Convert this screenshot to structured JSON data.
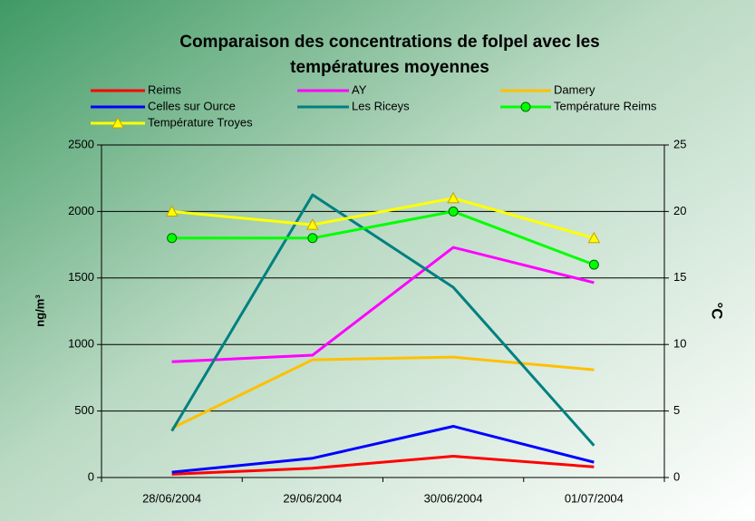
{
  "chart_data": {
    "type": "line",
    "title": [
      "Comparaison des concentrations de folpel avec les",
      "températures moyennes"
    ],
    "ylabel": "ng/m³",
    "y2label": "°C",
    "categories": [
      "28/06/2004",
      "29/06/2004",
      "30/06/2004",
      "01/07/2004"
    ],
    "series": [
      {
        "name": "Reims",
        "color": "#ff0000",
        "values": [
          25,
          70,
          160,
          80
        ]
      },
      {
        "name": "AY",
        "color": "#ff00ff",
        "values": [
          870,
          920,
          1730,
          1465
        ]
      },
      {
        "name": "Damery",
        "color": "#ffc000",
        "values": [
          370,
          885,
          905,
          810
        ]
      },
      {
        "name": "Celles sur Ource",
        "color": "#0000ff",
        "values": [
          40,
          145,
          385,
          115
        ]
      },
      {
        "name": "Les Riceys",
        "color": "#008080",
        "values": [
          350,
          2125,
          1430,
          240
        ]
      },
      {
        "name": "Température Reims",
        "color": "#00ff00",
        "axis": "y2",
        "marker": "circle",
        "values": [
          18,
          18,
          20,
          16
        ]
      },
      {
        "name": "Température Troyes",
        "color": "#ffff00",
        "axis": "y2",
        "marker": "triangle",
        "values": [
          20,
          19,
          21,
          18
        ]
      }
    ],
    "ylim": [
      0,
      2500
    ],
    "yticks": [
      0,
      500,
      1000,
      1500,
      2000,
      2500
    ],
    "y2lim": [
      0,
      25
    ],
    "y2ticks": [
      0,
      5,
      10,
      15,
      20,
      25
    ],
    "grid": true
  }
}
